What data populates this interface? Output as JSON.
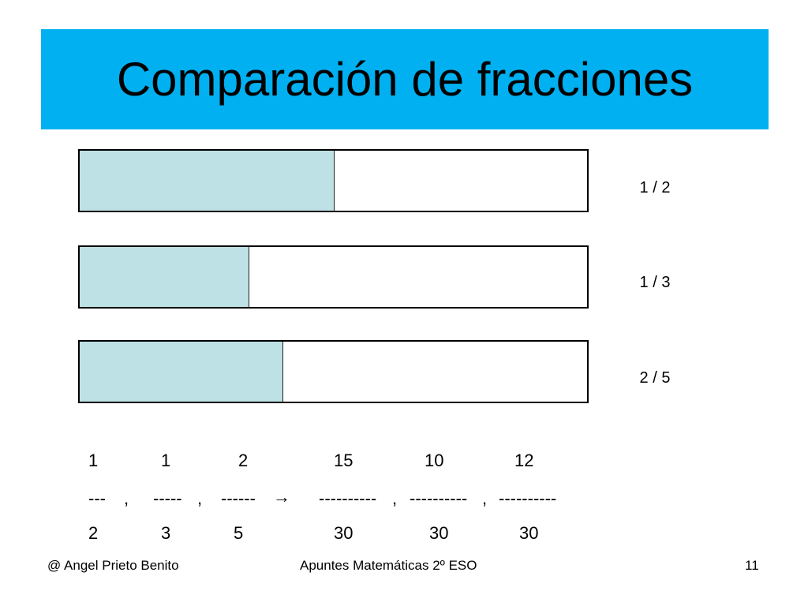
{
  "title": "Comparación de fracciones",
  "colors": {
    "banner": "#00b0f0",
    "bar_fill": "#bde1e4",
    "bar_border": "#000000"
  },
  "bars": [
    {
      "label": "1 / 2",
      "fraction": 0.5
    },
    {
      "label": "1 / 3",
      "fraction": 0.3333
    },
    {
      "label": "2 / 5",
      "fraction": 0.4
    }
  ],
  "comparison": {
    "numerators": [
      "1",
      "1",
      "2",
      "15",
      "10",
      "12"
    ],
    "bars_line": [
      "---",
      ",",
      "-----",
      ",",
      "------",
      "----------",
      ",",
      "----------",
      ",",
      "----------"
    ],
    "denominators": [
      "2",
      "3",
      "5",
      "30",
      "30",
      "30"
    ],
    "arrow_icon": "right-arrow-icon"
  },
  "footer": {
    "author": "@  Angel Prieto Benito",
    "course": "Apuntes Matemáticas 2º ESO",
    "page": "11"
  }
}
